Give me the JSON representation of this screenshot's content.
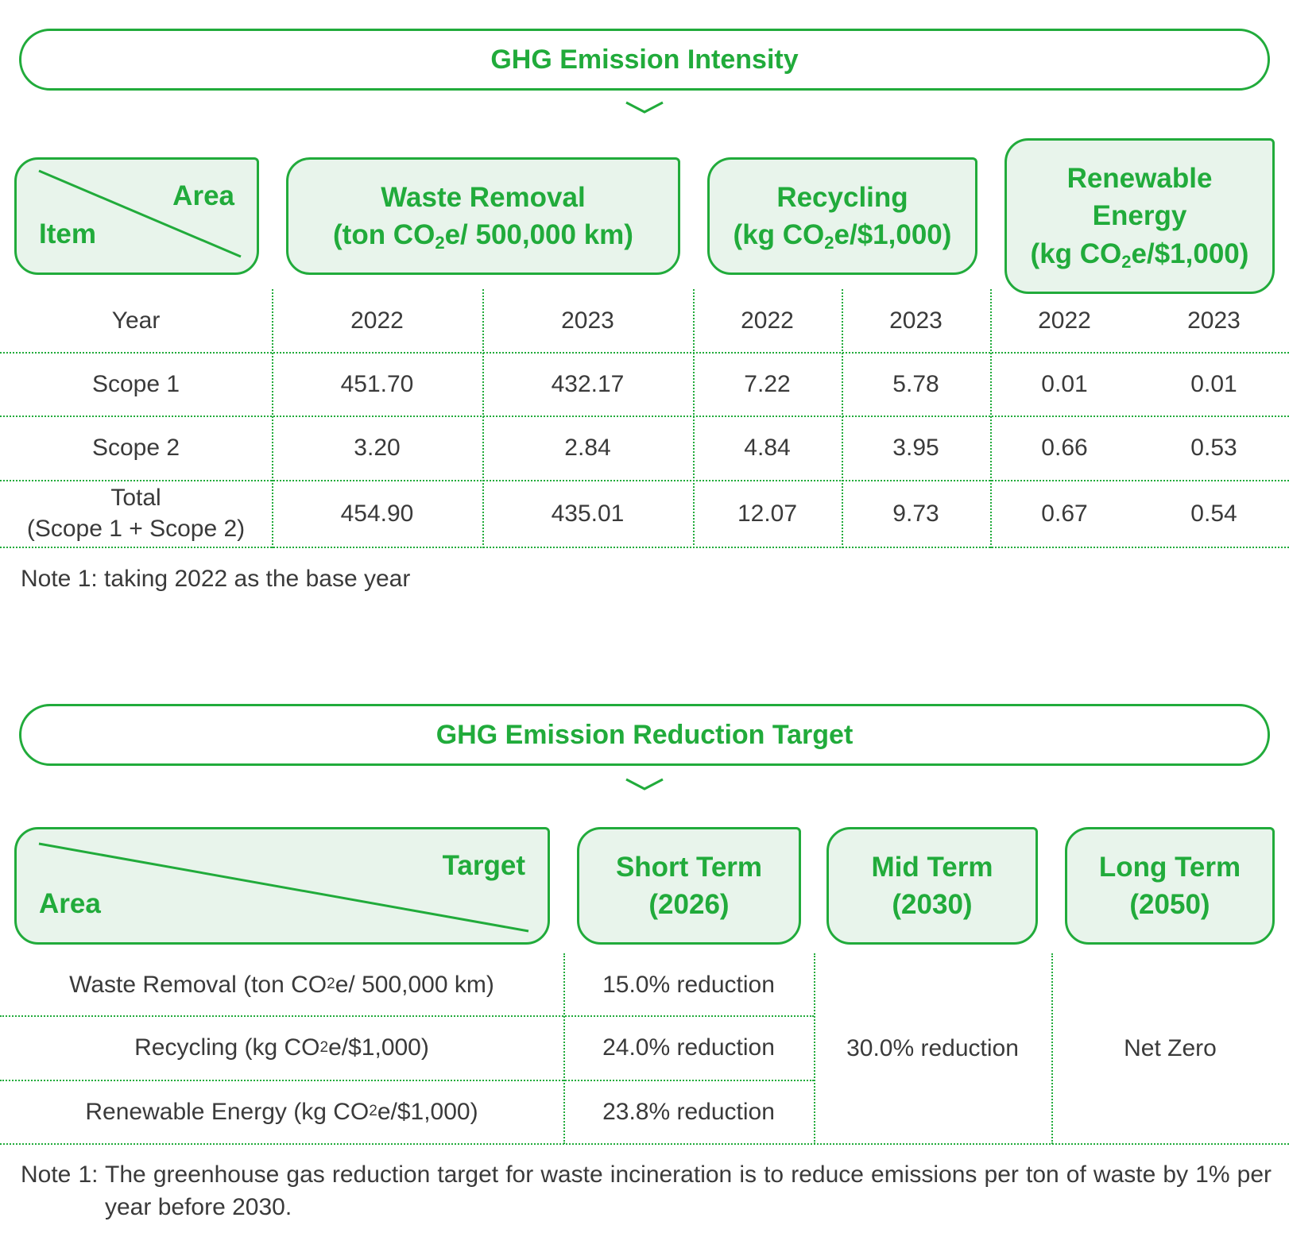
{
  "colors": {
    "accent": "#21ab3b",
    "header_fill": "#e8f4eb",
    "text": "#3a3a3a"
  },
  "intensity": {
    "title": "GHG Emission Intensity",
    "corner": {
      "top": "Area",
      "bottom": "Item"
    },
    "headers": [
      {
        "line1": "Waste Removal",
        "line2_pre": "(ton CO",
        "line2_sub": "2",
        "line2_post": "e/ 500,000 km)"
      },
      {
        "line1": "Recycling",
        "line2_pre": "(kg CO",
        "line2_sub": "2",
        "line2_post": "e/$1,000)"
      },
      {
        "line1": "Renewable",
        "line1b": "Energy",
        "line2_pre": "(kg CO",
        "line2_sub": "2",
        "line2_post": "e/$1,000)"
      }
    ],
    "year_label": "Year",
    "years": [
      "2022",
      "2023",
      "2022",
      "2023",
      "2022",
      "2023"
    ],
    "rows": [
      {
        "label": "Scope 1",
        "values": [
          "451.70",
          "432.17",
          "7.22",
          "5.78",
          "0.01",
          "0.01"
        ]
      },
      {
        "label": "Scope 2",
        "values": [
          "3.20",
          "2.84",
          "4.84",
          "3.95",
          "0.66",
          "0.53"
        ]
      },
      {
        "label": "Total",
        "label2": "(Scope 1 + Scope 2)",
        "values": [
          "454.90",
          "435.01",
          "12.07",
          "9.73",
          "0.67",
          "0.54"
        ]
      }
    ],
    "note": "Note 1: taking 2022 as the base year"
  },
  "target": {
    "title": "GHG Emission Reduction Target",
    "corner": {
      "top": "Target",
      "bottom": "Area"
    },
    "headers": [
      {
        "line1": "Short Term",
        "line2": "(2026)"
      },
      {
        "line1": "Mid Term",
        "line2": "(2030)"
      },
      {
        "line1": "Long Term",
        "line2": "(2050)"
      }
    ],
    "rows": [
      {
        "pre": "Waste Removal (ton CO",
        "sub": "2",
        "post": "e/ 500,000 km)",
        "short": "15.0% reduction"
      },
      {
        "pre": "Recycling (kg CO",
        "sub": "2",
        "post": "e/$1,000)",
        "short": "24.0% reduction"
      },
      {
        "pre": "Renewable Energy (kg CO",
        "sub": "2",
        "post": "e/$1,000)",
        "short": "23.8% reduction"
      }
    ],
    "mid": "30.0% reduction",
    "long": "Net Zero",
    "note": "Note 1: The greenhouse gas reduction target for waste incineration is to reduce emissions per ton of waste by 1% per year before 2030."
  }
}
